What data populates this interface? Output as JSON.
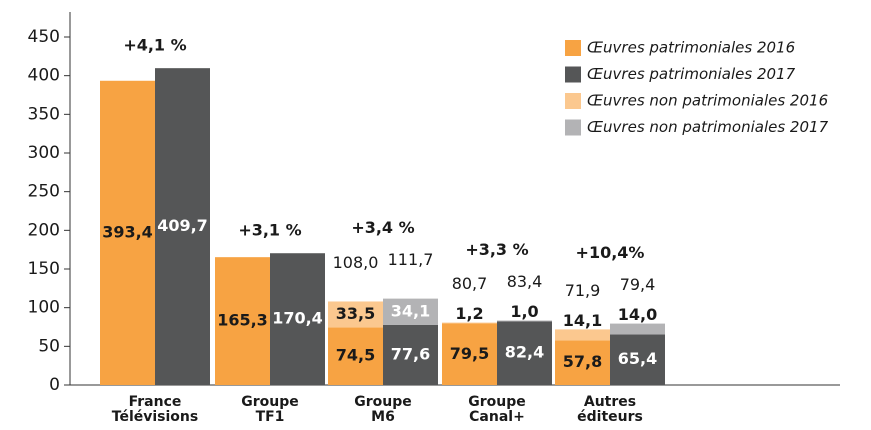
{
  "chart_data": {
    "type": "stacked_bar",
    "categories": [
      "France Télévisions",
      "Groupe TF1",
      "Groupe M6",
      "Groupe Canal+",
      "Autres éditeurs"
    ],
    "series": [
      {
        "name": "Œuvres patrimoniales 2016",
        "color": "#f7a343",
        "stack": 0,
        "values": [
          393.4,
          165.3,
          74.5,
          79.5,
          57.8
        ],
        "value_labels": [
          "393,4",
          "165,3",
          "74,5",
          "79,5",
          "57,8"
        ]
      },
      {
        "name": "Œuvres patrimoniales 2017",
        "color": "#555657",
        "stack": 1,
        "values": [
          409.7,
          170.4,
          77.6,
          82.4,
          65.4
        ],
        "value_labels": [
          "409,7",
          "170,4",
          "77,6",
          "82,4",
          "65,4"
        ]
      },
      {
        "name": "Œuvres non patrimoniales 2016",
        "color": "#fbc88f",
        "stack": 0,
        "values": [
          null,
          null,
          33.5,
          1.2,
          14.1
        ],
        "value_labels": [
          null,
          null,
          "33,5",
          "1,2",
          "14,1"
        ]
      },
      {
        "name": "Œuvres non patrimoniales 2017",
        "color": "#b3b3b5",
        "stack": 1,
        "values": [
          null,
          null,
          34.1,
          1.0,
          14.0
        ],
        "value_labels": [
          null,
          null,
          "34,1",
          "1,0",
          "14,0"
        ]
      }
    ],
    "totals": [
      {
        "values": [
          null,
          null,
          108.0,
          80.7,
          71.9
        ],
        "value_labels": [
          null,
          null,
          "108,0",
          "80,7",
          "71,9"
        ]
      },
      {
        "values": [
          null,
          null,
          111.7,
          83.4,
          79.4
        ],
        "value_labels": [
          null,
          null,
          "111,7",
          "83,4",
          "79,4"
        ]
      }
    ],
    "annotations": [
      "+4,1 %",
      "+3,1 %",
      "+3,4 %",
      "+3,3 %",
      "+10,4%"
    ],
    "ylim": [
      0,
      450
    ],
    "yticks": [
      0,
      50,
      100,
      150,
      200,
      250,
      300,
      350,
      400,
      450
    ],
    "grid": false,
    "legend": "top-right"
  }
}
